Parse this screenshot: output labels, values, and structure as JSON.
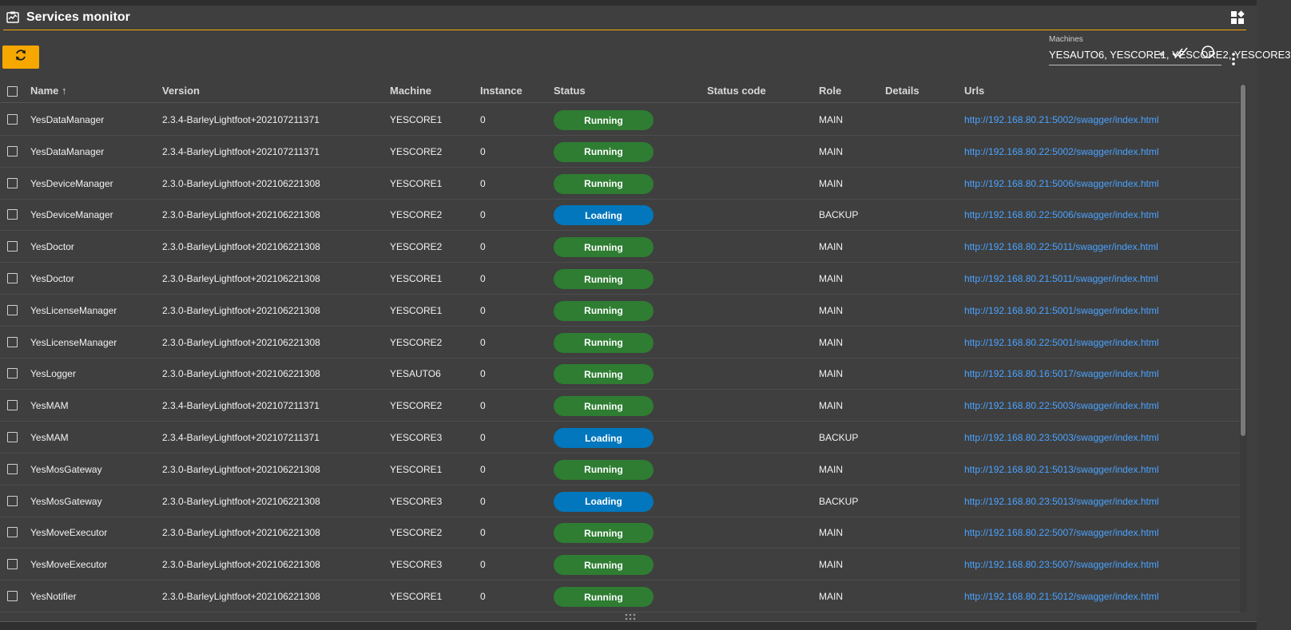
{
  "colors": {
    "accent": "#f6a800",
    "running": "#2e7d32",
    "loading": "#0277bd",
    "link": "#4aa3ff"
  },
  "header": {
    "title": "Services monitor",
    "title_icon": "monitor-chart-icon",
    "layout_icon": "dashboard-icon"
  },
  "toolbar": {
    "refresh_icon": "refresh-icon",
    "machines_label": "Machines",
    "machines_value": "YESAUTO6, YESCORE1, YESCORE2, YESCORE3",
    "select_all_icon": "double-check-icon",
    "clear_icon": "circle-icon",
    "more_icon": "more-vert-icon"
  },
  "columns": {
    "name": "Name ↑",
    "version": "Version",
    "machine": "Machine",
    "instance": "Instance",
    "status": "Status",
    "status_code": "Status code",
    "role": "Role",
    "details": "Details",
    "urls": "Urls"
  },
  "rows": [
    {
      "name": "YesDataManager",
      "version": "2.3.4-BarleyLightfoot+202107211371",
      "machine": "YESCORE1",
      "instance": "0",
      "status": "Running",
      "status_code": "",
      "role": "MAIN",
      "details": "",
      "url": "http://192.168.80.21:5002/swagger/index.html"
    },
    {
      "name": "YesDataManager",
      "version": "2.3.4-BarleyLightfoot+202107211371",
      "machine": "YESCORE2",
      "instance": "0",
      "status": "Running",
      "status_code": "",
      "role": "MAIN",
      "details": "",
      "url": "http://192.168.80.22:5002/swagger/index.html"
    },
    {
      "name": "YesDeviceManager",
      "version": "2.3.0-BarleyLightfoot+202106221308",
      "machine": "YESCORE1",
      "instance": "0",
      "status": "Running",
      "status_code": "",
      "role": "MAIN",
      "details": "",
      "url": "http://192.168.80.21:5006/swagger/index.html"
    },
    {
      "name": "YesDeviceManager",
      "version": "2.3.0-BarleyLightfoot+202106221308",
      "machine": "YESCORE2",
      "instance": "0",
      "status": "Loading",
      "status_code": "",
      "role": "BACKUP",
      "details": "",
      "url": "http://192.168.80.22:5006/swagger/index.html"
    },
    {
      "name": "YesDoctor",
      "version": "2.3.0-BarleyLightfoot+202106221308",
      "machine": "YESCORE2",
      "instance": "0",
      "status": "Running",
      "status_code": "",
      "role": "MAIN",
      "details": "",
      "url": "http://192.168.80.22:5011/swagger/index.html"
    },
    {
      "name": "YesDoctor",
      "version": "2.3.0-BarleyLightfoot+202106221308",
      "machine": "YESCORE1",
      "instance": "0",
      "status": "Running",
      "status_code": "",
      "role": "MAIN",
      "details": "",
      "url": "http://192.168.80.21:5011/swagger/index.html"
    },
    {
      "name": "YesLicenseManager",
      "version": "2.3.0-BarleyLightfoot+202106221308",
      "machine": "YESCORE1",
      "instance": "0",
      "status": "Running",
      "status_code": "",
      "role": "MAIN",
      "details": "",
      "url": "http://192.168.80.21:5001/swagger/index.html"
    },
    {
      "name": "YesLicenseManager",
      "version": "2.3.0-BarleyLightfoot+202106221308",
      "machine": "YESCORE2",
      "instance": "0",
      "status": "Running",
      "status_code": "",
      "role": "MAIN",
      "details": "",
      "url": "http://192.168.80.22:5001/swagger/index.html"
    },
    {
      "name": "YesLogger",
      "version": "2.3.0-BarleyLightfoot+202106221308",
      "machine": "YESAUTO6",
      "instance": "0",
      "status": "Running",
      "status_code": "",
      "role": "MAIN",
      "details": "",
      "url": "http://192.168.80.16:5017/swagger/index.html"
    },
    {
      "name": "YesMAM",
      "version": "2.3.4-BarleyLightfoot+202107211371",
      "machine": "YESCORE2",
      "instance": "0",
      "status": "Running",
      "status_code": "",
      "role": "MAIN",
      "details": "",
      "url": "http://192.168.80.22:5003/swagger/index.html"
    },
    {
      "name": "YesMAM",
      "version": "2.3.4-BarleyLightfoot+202107211371",
      "machine": "YESCORE3",
      "instance": "0",
      "status": "Loading",
      "status_code": "",
      "role": "BACKUP",
      "details": "",
      "url": "http://192.168.80.23:5003/swagger/index.html"
    },
    {
      "name": "YesMosGateway",
      "version": "2.3.0-BarleyLightfoot+202106221308",
      "machine": "YESCORE1",
      "instance": "0",
      "status": "Running",
      "status_code": "",
      "role": "MAIN",
      "details": "",
      "url": "http://192.168.80.21:5013/swagger/index.html"
    },
    {
      "name": "YesMosGateway",
      "version": "2.3.0-BarleyLightfoot+202106221308",
      "machine": "YESCORE3",
      "instance": "0",
      "status": "Loading",
      "status_code": "",
      "role": "BACKUP",
      "details": "",
      "url": "http://192.168.80.23:5013/swagger/index.html"
    },
    {
      "name": "YesMoveExecutor",
      "version": "2.3.0-BarleyLightfoot+202106221308",
      "machine": "YESCORE2",
      "instance": "0",
      "status": "Running",
      "status_code": "",
      "role": "MAIN",
      "details": "",
      "url": "http://192.168.80.22:5007/swagger/index.html"
    },
    {
      "name": "YesMoveExecutor",
      "version": "2.3.0-BarleyLightfoot+202106221308",
      "machine": "YESCORE3",
      "instance": "0",
      "status": "Running",
      "status_code": "",
      "role": "MAIN",
      "details": "",
      "url": "http://192.168.80.23:5007/swagger/index.html"
    },
    {
      "name": "YesNotifier",
      "version": "2.3.0-BarleyLightfoot+202106221308",
      "machine": "YESCORE1",
      "instance": "0",
      "status": "Running",
      "status_code": "",
      "role": "MAIN",
      "details": "",
      "url": "http://192.168.80.21:5012/swagger/index.html"
    }
  ]
}
